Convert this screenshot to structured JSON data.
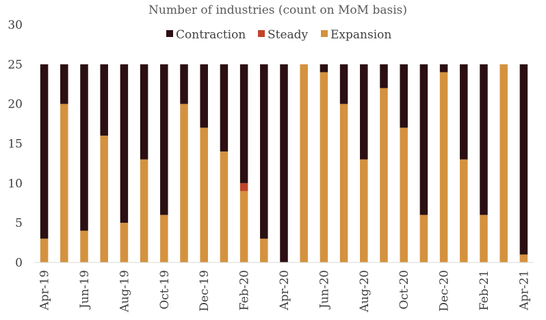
{
  "chart_data": {
    "type": "bar",
    "stacked": true,
    "title": "Number of industries (count on MoM basis)",
    "xlabel": "",
    "ylabel": "",
    "ylim": [
      0,
      30
    ],
    "yticks": [
      0,
      5,
      10,
      15,
      20,
      25,
      30
    ],
    "grid": false,
    "legend_position": "top",
    "categories": [
      "Apr-19",
      "May-19",
      "Jun-19",
      "Jul-19",
      "Aug-19",
      "Sep-19",
      "Oct-19",
      "Nov-19",
      "Dec-19",
      "Jan-20",
      "Feb-20",
      "Mar-20",
      "Apr-20",
      "May-20",
      "Jun-20",
      "Jul-20",
      "Aug-20",
      "Sep-20",
      "Oct-20",
      "Nov-20",
      "Dec-20",
      "Jan-21",
      "Feb-21",
      "Mar-21",
      "Apr-21"
    ],
    "shown_tick_labels": [
      "Apr-19",
      "Jun-19",
      "Aug-19",
      "Oct-19",
      "Dec-19",
      "Feb-20",
      "Apr-20",
      "Jun-20",
      "Aug-20",
      "Oct-20",
      "Dec-20",
      "Feb-21",
      "Apr-21"
    ],
    "series": [
      {
        "name": "Expansion",
        "color": "#D4923F",
        "values": [
          3,
          20,
          4,
          16,
          5,
          13,
          6,
          20,
          17,
          14,
          9,
          3,
          0,
          25,
          24,
          20,
          13,
          22,
          17,
          6,
          24,
          13,
          6,
          25,
          1
        ]
      },
      {
        "name": "Steady",
        "color": "#C0452A",
        "values": [
          0,
          0,
          0,
          0,
          0,
          0,
          0,
          0,
          0,
          0,
          1,
          0,
          0,
          0,
          0,
          0,
          0,
          0,
          0,
          0,
          0,
          0,
          0,
          0,
          0
        ]
      },
      {
        "name": "Contraction",
        "color": "#2B0F12",
        "values": [
          22,
          5,
          21,
          9,
          20,
          12,
          19,
          5,
          8,
          11,
          15,
          22,
          25,
          0,
          1,
          5,
          12,
          3,
          8,
          19,
          1,
          12,
          19,
          0,
          24
        ]
      }
    ],
    "legend_order": [
      "Contraction",
      "Steady",
      "Expansion"
    ]
  }
}
